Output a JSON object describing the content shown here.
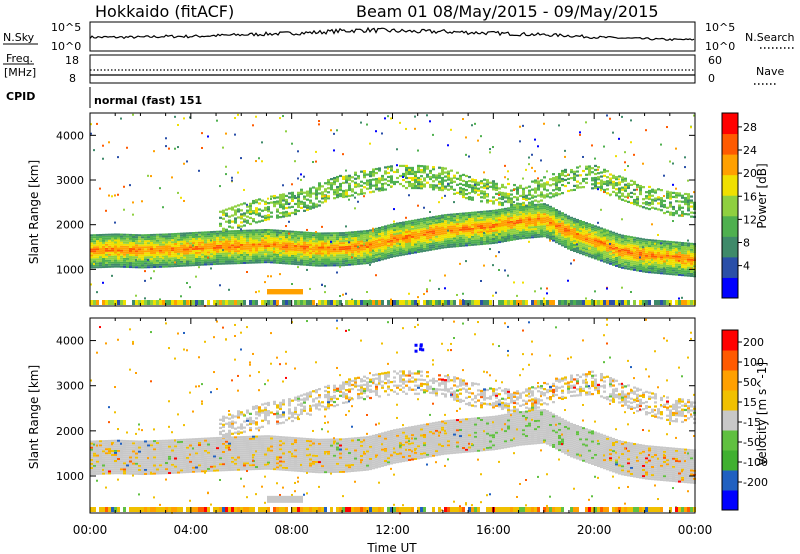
{
  "header": {
    "title_left": "Hokkaido (fitACF)",
    "title_right": "Beam 01  08/May/2015 - 09/May/2015"
  },
  "panels": {
    "nsky_label": "N.Sky",
    "nsky_ticks": [
      "10^5",
      "10^0"
    ],
    "nsearch_label": "N.Search",
    "nsearch_ticks": [
      "10^5",
      "10^0"
    ],
    "freq_label_line1": "Freq.",
    "freq_label_line2": "[MHz]",
    "freq_ticks": [
      "18",
      "8"
    ],
    "nave_label": "Nave",
    "nave_ticks": [
      "60",
      "0"
    ],
    "cpid_label": "CPID",
    "cpid_text": "normal (fast) 151"
  },
  "chart_data": [
    {
      "type": "heatmap",
      "name": "power",
      "ylabel": "Slant Range [km]",
      "y_ticks": [
        "4000",
        "3000",
        "2000",
        "1000"
      ],
      "ylim": [
        180,
        4500
      ],
      "x_ticks": [
        "00:00",
        "04:00",
        "08:00",
        "12:00",
        "16:00",
        "20:00",
        "00:00"
      ],
      "xlabel": "Time UT",
      "xlim_hours": [
        0,
        24
      ],
      "colorbar_label": "Power [dB]",
      "colorbar_ticks": [
        "28",
        "24",
        "20",
        "16",
        "12",
        "8",
        "4"
      ],
      "colors": [
        "#0000ff",
        "#2a4fa8",
        "#3f8a6a",
        "#4fb04f",
        "#8fd040",
        "#f0e000",
        "#ffa000",
        "#ff5a00",
        "#ff0000"
      ],
      "layers": [
        {
          "label": "main F-region band",
          "center_km": [
            1400,
            1420,
            1400,
            1420,
            1450,
            1480,
            1500,
            1520,
            1480,
            1440,
            1450,
            1500,
            1650,
            1750,
            1850,
            1900,
            1950,
            2050,
            2100,
            1800,
            1600,
            1400,
            1300,
            1250,
            1200
          ],
          "width_km": 380,
          "power_db": 26
        },
        {
          "label": "upper band",
          "center_km": [
            1200,
            1200,
            1200,
            1200,
            1600,
            2000,
            2200,
            2350,
            2450,
            2650,
            2850,
            2950,
            3050,
            3050,
            3000,
            2800,
            2700,
            2600,
            2800,
            3000,
            3050,
            2800,
            2600,
            2450,
            2400
          ],
          "width_km": 250,
          "power_db": 14
        },
        {
          "label": "near-range patch",
          "x_range_h": [
            7.0,
            8.4
          ],
          "center_km": 500,
          "width_km": 120,
          "power_db": 24
        }
      ]
    },
    {
      "type": "heatmap",
      "name": "velocity",
      "ylabel": "Slant Range [km]",
      "y_ticks": [
        "4000",
        "3000",
        "2000",
        "1000"
      ],
      "ylim": [
        180,
        4500
      ],
      "x_ticks": [
        "00:00",
        "04:00",
        "08:00",
        "12:00",
        "16:00",
        "20:00",
        "00:00"
      ],
      "xlabel": "Time UT",
      "colorbar_label": "Velocity [m s^-1]",
      "colorbar_ticks": [
        "200",
        "100",
        "50",
        "15",
        "-15",
        "-50",
        "-100",
        "-200"
      ],
      "colors": [
        "#ff0000",
        "#ff5a00",
        "#ffa000",
        "#f0c000",
        "#c8c8c8",
        "#60c040",
        "#40b030",
        "#2060c0",
        "#0000ff"
      ],
      "dominant_value": "ground scatter (grey)",
      "blue_patch": {
        "x_h": 13.0,
        "range_km": 3850,
        "velocity": 200
      }
    }
  ],
  "nsky_series": [
    0.55,
    0.55,
    0.55,
    0.6,
    0.6,
    0.65,
    0.7,
    0.75,
    0.8,
    0.85,
    0.95,
    1.0,
    0.95,
    0.9,
    0.9,
    0.85,
    0.8,
    0.75,
    0.7,
    0.65,
    0.55,
    0.5,
    0.45,
    0.4,
    0.4
  ]
}
